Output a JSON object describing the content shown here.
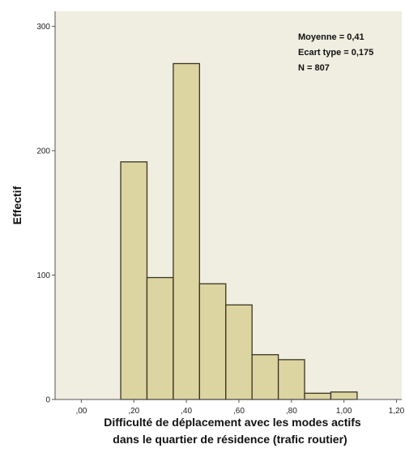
{
  "chart_data": {
    "type": "bar",
    "bins": [
      {
        "x0": 0.15,
        "x1": 0.25,
        "value": 191
      },
      {
        "x0": 0.25,
        "x1": 0.35,
        "value": 98
      },
      {
        "x0": 0.35,
        "x1": 0.45,
        "value": 270
      },
      {
        "x0": 0.45,
        "x1": 0.55,
        "value": 93
      },
      {
        "x0": 0.55,
        "x1": 0.65,
        "value": 76
      },
      {
        "x0": 0.65,
        "x1": 0.75,
        "value": 36
      },
      {
        "x0": 0.75,
        "x1": 0.85,
        "value": 32
      },
      {
        "x0": 0.85,
        "x1": 0.95,
        "value": 5
      },
      {
        "x0": 0.95,
        "x1": 1.05,
        "value": 6
      }
    ],
    "xlim": [
      -0.1,
      1.22
    ],
    "ylim": [
      0,
      312
    ],
    "xticks": [
      0,
      0.2,
      0.4,
      0.6,
      0.8,
      1.0,
      1.2
    ],
    "xtick_labels": [
      ",00",
      ",20",
      ",40",
      ",60",
      ",80",
      "1,00",
      "1,20"
    ],
    "yticks": [
      0,
      100,
      200,
      300
    ],
    "ytick_labels": [
      "0",
      "100",
      "200",
      "300"
    ],
    "ylabel": "Effectif",
    "xlabel_line1": "Difficulté de déplacement avec les modes actifs",
    "xlabel_line2": "dans le quartier de résidence (trafic routier)",
    "stats": [
      "Moyenne = 0,41",
      "Ecart type = 0,175",
      "N = 807"
    ],
    "bar_color": "#dcd5a2",
    "bar_edge_color": "#3a3520",
    "plot_background": "#efeee0"
  }
}
